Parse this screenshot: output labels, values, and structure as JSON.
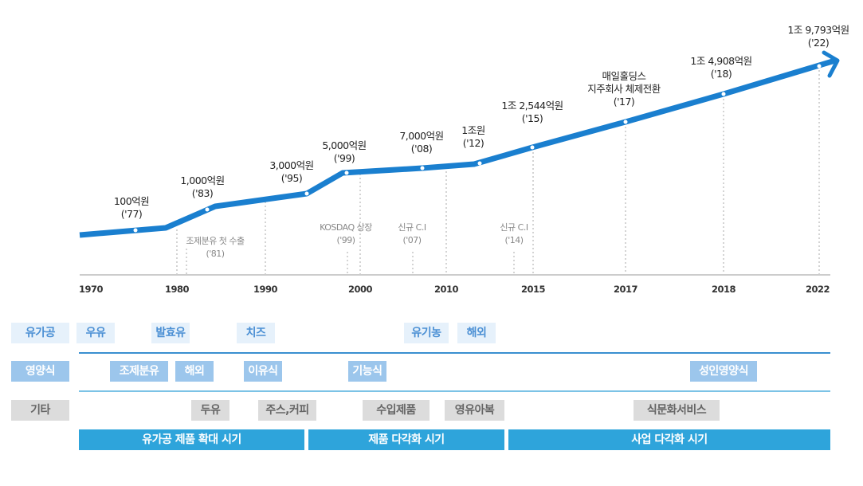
{
  "milestones": [
    {
      "value": "100억원",
      "year": "('77)"
    },
    {
      "value": "1,000억원",
      "year": "('83)"
    },
    {
      "value": "3,000억원",
      "year": "('95)"
    },
    {
      "value": "5,000억원",
      "year": "('99)"
    },
    {
      "value": "7,000억원",
      "year": "('08)"
    },
    {
      "value": "1조원",
      "year": "('12)"
    },
    {
      "value": "1조 2,544억원",
      "year": "('15)"
    },
    {
      "value": "매일홀딩스",
      "value2": "지주회사 체제전환",
      "year": "('17)"
    },
    {
      "value": "1조 4,908억원",
      "year": "('18)"
    },
    {
      "value": "1조 9,793억원",
      "year": "('22)"
    }
  ],
  "notes": [
    {
      "text": "조제분유 첫 수출",
      "year": "('81)"
    },
    {
      "text": "KOSDAQ 상장",
      "year": "('99)"
    },
    {
      "text": "신규 C.I",
      "year": "('07)"
    },
    {
      "text": "신규 C.I",
      "year": "('14)"
    }
  ],
  "axis_years": [
    "1970",
    "1980",
    "1990",
    "2000",
    "2010",
    "2015",
    "2017",
    "2018",
    "2022"
  ],
  "rows": {
    "dairy": {
      "label": "유가공",
      "items": [
        "우유",
        "발효유",
        "치즈",
        "유기농",
        "해외"
      ]
    },
    "nutrition": {
      "label": "영양식",
      "items": [
        "조제분유",
        "해외",
        "이유식",
        "기능식",
        "성인영양식"
      ]
    },
    "other": {
      "label": "기타",
      "items": [
        "두유",
        "주스,커피",
        "수입제품",
        "영유아복",
        "식문화서비스"
      ]
    }
  },
  "periods": [
    "유가공 제품 확대 시기",
    "제품 다각화 시기",
    "사업 다각화 시기"
  ],
  "colors": {
    "line": "#1a7fcf",
    "period": "#2ea4db"
  }
}
